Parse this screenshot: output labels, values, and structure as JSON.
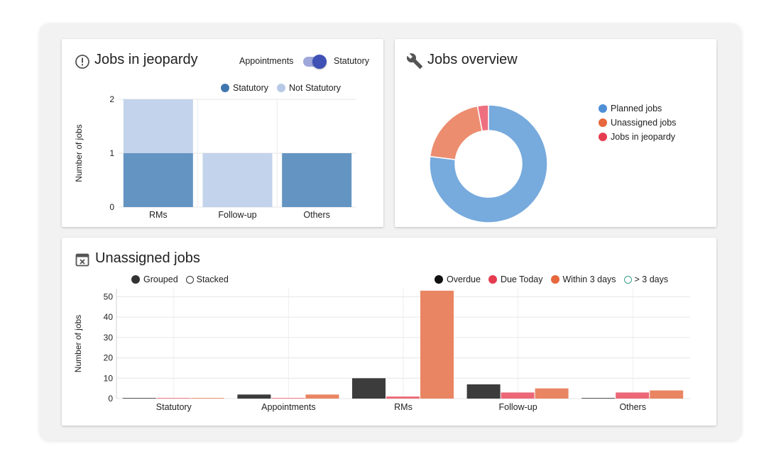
{
  "jeopardy": {
    "title": "Jobs in jeopardy",
    "toggle": {
      "left_label": "Appointments",
      "right_label": "Statutory",
      "state": "Statutory"
    },
    "legend": [
      {
        "label": "Statutory",
        "color": "#3f76ad"
      },
      {
        "label": "Not Statutory",
        "color": "#b6c9e6"
      }
    ],
    "chart_data": {
      "type": "bar",
      "stacked": true,
      "categories": [
        "RMs",
        "Follow-up",
        "Others"
      ],
      "series": [
        {
          "name": "Statutory",
          "values": [
            1,
            0,
            1
          ],
          "color": "#6494c2"
        },
        {
          "name": "Not Statutory",
          "values": [
            1,
            1,
            0
          ],
          "color": "#c3d3eb"
        }
      ],
      "ylabel": "Number of jobs",
      "ylim": [
        0,
        2
      ],
      "yticks": [
        "0",
        "1",
        "2"
      ],
      "grid": true
    }
  },
  "overview": {
    "title": "Jobs overview",
    "legend": [
      {
        "label": "Planned jobs",
        "color": "#4f8fd6"
      },
      {
        "label": "Unassigned jobs",
        "color": "#e6683c"
      },
      {
        "label": "Jobs in jeopardy",
        "color": "#e63c4f"
      }
    ],
    "chart_data": {
      "type": "pie",
      "donut": true,
      "labels": [
        "Planned jobs",
        "Unassigned jobs",
        "Jobs in jeopardy"
      ],
      "values": [
        77,
        20,
        3
      ],
      "colors": [
        "#77aadd",
        "#ec8d70",
        "#ee6f7f"
      ]
    }
  },
  "unassigned": {
    "title": "Unassigned jobs",
    "mode_options": [
      {
        "label": "Grouped",
        "selected": true
      },
      {
        "label": "Stacked",
        "selected": false
      }
    ],
    "legend": [
      {
        "label": "Overdue",
        "color": "#111111",
        "style": "filled"
      },
      {
        "label": "Due Today",
        "color": "#e63c4f",
        "style": "filled"
      },
      {
        "label": "Within 3 days",
        "color": "#e6683c",
        "style": "filled"
      },
      {
        "label": "> 3 days",
        "color": "#3a9d8a",
        "style": "hollow"
      }
    ],
    "chart_data": {
      "type": "bar",
      "grouped": true,
      "categories": [
        "Statutory",
        "Appointments",
        "RMs",
        "Follow-up",
        "Others"
      ],
      "series": [
        {
          "name": "Overdue",
          "values": [
            0.3,
            2,
            10,
            7,
            0.3
          ],
          "color": "#3c3c3c"
        },
        {
          "name": "Due Today",
          "values": [
            0.3,
            0.3,
            1,
            3,
            3
          ],
          "color": "#ec6877"
        },
        {
          "name": "Within 3 days",
          "values": [
            0.3,
            2,
            53,
            5,
            4
          ],
          "color": "#e98562"
        }
      ],
      "ylabel": "Number of jobs",
      "ylim": [
        0,
        54
      ],
      "yticks": [
        "0",
        "10",
        "20",
        "30",
        "40",
        "50"
      ],
      "grid": true
    }
  }
}
